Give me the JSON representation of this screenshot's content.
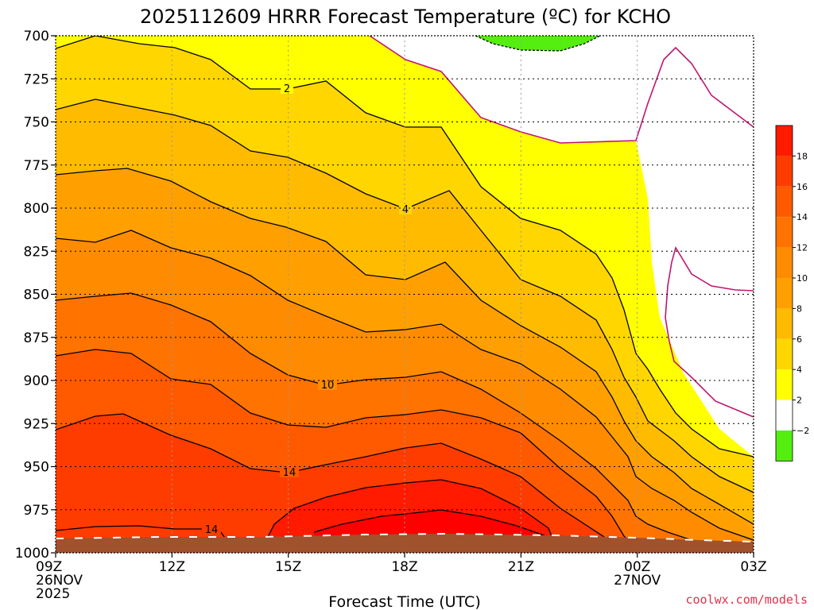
{
  "chart_data": {
    "type": "area",
    "title": "2025112609 HRRR Forecast Temperature (ºC) for KCHO",
    "xlabel": "Forecast Time (UTC)",
    "x_tick_labels": [
      {
        "top": "09Z",
        "mid": "26NOV",
        "bottom": "2025"
      },
      {
        "top": "12Z",
        "mid": "",
        "bottom": ""
      },
      {
        "top": "15Z",
        "mid": "",
        "bottom": ""
      },
      {
        "top": "18Z",
        "mid": "",
        "bottom": ""
      },
      {
        "top": "21Z",
        "mid": "",
        "bottom": ""
      },
      {
        "top": "00Z",
        "mid": "27NOV",
        "bottom": ""
      },
      {
        "top": "03Z",
        "mid": "",
        "bottom": ""
      }
    ],
    "x": [
      "09Z",
      "12Z",
      "15Z",
      "18Z",
      "21Z",
      "00Z",
      "03Z"
    ],
    "y_ticks": [
      700,
      725,
      750,
      775,
      800,
      825,
      850,
      875,
      900,
      925,
      950,
      975,
      1000
    ],
    "ylim": [
      1000,
      700
    ],
    "ylabel": "",
    "grid": true,
    "contour_levels": [
      -2,
      0,
      2,
      4,
      6,
      8,
      10,
      12,
      14,
      16,
      18
    ],
    "contour_labels": [
      "2",
      "4",
      "10",
      "14",
      "14"
    ],
    "colorbar": {
      "ticks": [
        "18",
        "16",
        "14",
        "12",
        "10",
        "8",
        "6",
        "4",
        "2",
        "−2"
      ],
      "colors": [
        "#ff1a00",
        "#ff3c00",
        "#ff5a00",
        "#ff7300",
        "#ff8c00",
        "#ffa000",
        "#ffbb00",
        "#ffd600",
        "#ffff00",
        "#ffffff",
        "#55ee11"
      ]
    },
    "surface_color": "#a0522d",
    "freezing_line_color": "#c0166e"
  },
  "credit": "coolwx.com/models"
}
